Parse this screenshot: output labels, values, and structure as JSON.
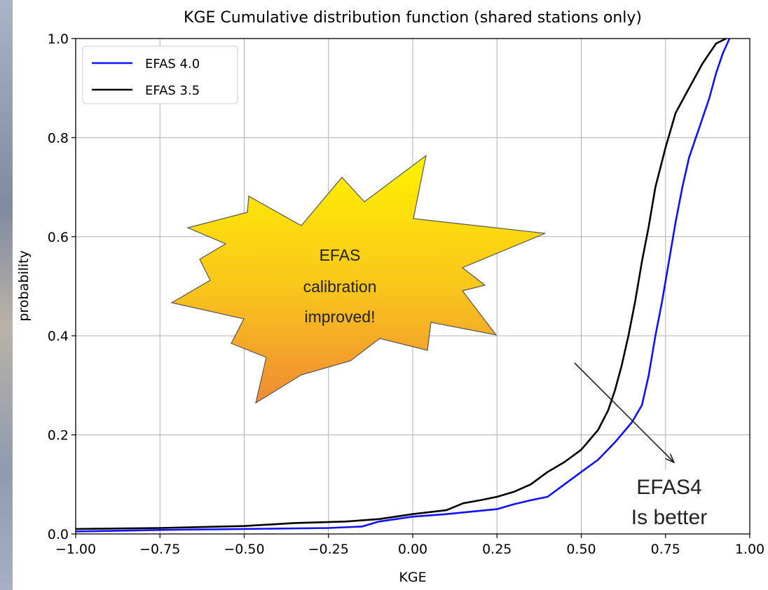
{
  "chart_data": {
    "type": "line",
    "title": "KGE Cumulative distribution function (shared stations only)",
    "xlabel": "KGE",
    "ylabel": "probability",
    "xlim": [
      -1.0,
      1.0
    ],
    "ylim": [
      0.0,
      1.0
    ],
    "xticks": [
      "−1.00",
      "−0.75",
      "−0.50",
      "−0.25",
      "0.00",
      "0.25",
      "0.50",
      "0.75",
      "1.00"
    ],
    "yticks": [
      "0.0",
      "0.2",
      "0.4",
      "0.6",
      "0.8",
      "1.0"
    ],
    "grid": true,
    "legend_position": "top-left",
    "series": [
      {
        "name": "EFAS 4.0",
        "color": "#1010ff",
        "points": [
          [
            -1.0,
            0.005
          ],
          [
            -0.75,
            0.008
          ],
          [
            -0.5,
            0.01
          ],
          [
            -0.25,
            0.012
          ],
          [
            -0.15,
            0.015
          ],
          [
            -0.1,
            0.025
          ],
          [
            0.0,
            0.035
          ],
          [
            0.1,
            0.04
          ],
          [
            0.25,
            0.05
          ],
          [
            0.3,
            0.06
          ],
          [
            0.35,
            0.068
          ],
          [
            0.4,
            0.075
          ],
          [
            0.45,
            0.1
          ],
          [
            0.5,
            0.125
          ],
          [
            0.55,
            0.15
          ],
          [
            0.6,
            0.185
          ],
          [
            0.65,
            0.225
          ],
          [
            0.68,
            0.26
          ],
          [
            0.7,
            0.32
          ],
          [
            0.72,
            0.4
          ],
          [
            0.74,
            0.47
          ],
          [
            0.76,
            0.55
          ],
          [
            0.78,
            0.63
          ],
          [
            0.8,
            0.7
          ],
          [
            0.82,
            0.76
          ],
          [
            0.85,
            0.82
          ],
          [
            0.88,
            0.88
          ],
          [
            0.9,
            0.93
          ],
          [
            0.92,
            0.97
          ],
          [
            0.94,
            1.0
          ]
        ]
      },
      {
        "name": "EFAS 3.5",
        "color": "#000000",
        "points": [
          [
            -1.0,
            0.01
          ],
          [
            -0.75,
            0.012
          ],
          [
            -0.5,
            0.016
          ],
          [
            -0.35,
            0.022
          ],
          [
            -0.2,
            0.025
          ],
          [
            -0.1,
            0.03
          ],
          [
            0.0,
            0.04
          ],
          [
            0.1,
            0.048
          ],
          [
            0.15,
            0.062
          ],
          [
            0.2,
            0.068
          ],
          [
            0.25,
            0.075
          ],
          [
            0.3,
            0.085
          ],
          [
            0.35,
            0.1
          ],
          [
            0.4,
            0.125
          ],
          [
            0.45,
            0.145
          ],
          [
            0.5,
            0.17
          ],
          [
            0.55,
            0.21
          ],
          [
            0.58,
            0.25
          ],
          [
            0.6,
            0.29
          ],
          [
            0.62,
            0.34
          ],
          [
            0.64,
            0.4
          ],
          [
            0.66,
            0.47
          ],
          [
            0.68,
            0.55
          ],
          [
            0.7,
            0.62
          ],
          [
            0.72,
            0.7
          ],
          [
            0.75,
            0.78
          ],
          [
            0.78,
            0.85
          ],
          [
            0.82,
            0.9
          ],
          [
            0.86,
            0.95
          ],
          [
            0.9,
            0.99
          ],
          [
            0.93,
            1.0
          ]
        ]
      }
    ],
    "annotations": {
      "callout_lines": [
        "EFAS",
        "calibration",
        "improved!"
      ],
      "note_lines": [
        "EFAS4",
        "Is better"
      ]
    }
  }
}
